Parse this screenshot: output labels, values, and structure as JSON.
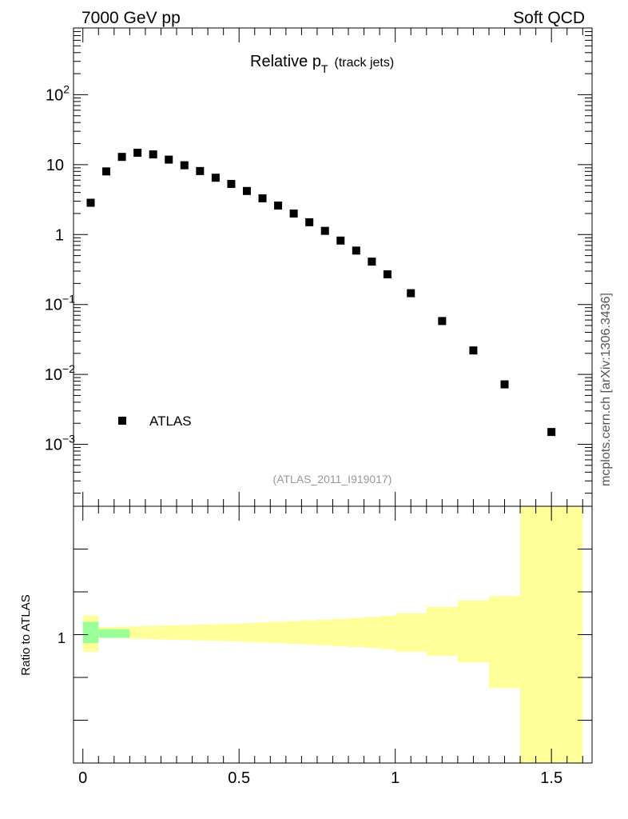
{
  "header": {
    "left": "7000 GeV pp",
    "right": "Soft QCD"
  },
  "plot_title": {
    "main": "Relative p",
    "sub": "T",
    "suffix": "(track jets)"
  },
  "analysis_id": "(ATLAS_2011_I919017)",
  "side_label": "mcplots.cern.ch [arXiv:1306.3436]",
  "legend": {
    "entry": "ATLAS",
    "placement": "lower-left"
  },
  "ratio_ylabel": "Ratio to ATLAS",
  "colors": {
    "markers": "#000000",
    "band_total": "#ffff99",
    "band_stat": "#99ff99"
  },
  "chart_data": [
    {
      "type": "scatter",
      "title": "Relative pT (track jets)",
      "yscale": "log",
      "xlim": [
        -0.03,
        1.63
      ],
      "ylim": [
        0.00013,
        900
      ],
      "ytick_labels": [
        {
          "value": 100,
          "base": "10",
          "exp": "2"
        },
        {
          "value": 10,
          "base": "10",
          "exp": ""
        },
        {
          "value": 1,
          "base": "1",
          "exp": ""
        },
        {
          "value": 0.1,
          "base": "10",
          "exp": "−1"
        },
        {
          "value": 0.01,
          "base": "10",
          "exp": "−2"
        },
        {
          "value": 0.001,
          "base": "10",
          "exp": "−3"
        }
      ],
      "series": [
        {
          "name": "ATLAS",
          "x": [
            0.025,
            0.075,
            0.125,
            0.175,
            0.225,
            0.275,
            0.325,
            0.375,
            0.425,
            0.475,
            0.525,
            0.575,
            0.625,
            0.675,
            0.725,
            0.775,
            0.825,
            0.875,
            0.925,
            0.975,
            1.05,
            1.15,
            1.25,
            1.35,
            1.5
          ],
          "y": [
            2.85,
            8.0,
            12.9,
            14.8,
            14.0,
            11.8,
            9.8,
            8.1,
            6.5,
            5.3,
            4.2,
            3.3,
            2.6,
            2.0,
            1.5,
            1.13,
            0.82,
            0.59,
            0.41,
            0.27,
            0.145,
            0.058,
            0.022,
            0.0072,
            0.0015
          ]
        }
      ]
    },
    {
      "type": "area",
      "ylabel": "Ratio to ATLAS",
      "xlim": [
        -0.03,
        1.63
      ],
      "ytick_labels": [
        {
          "value": 1,
          "label": "1"
        }
      ],
      "xtick_labels": [
        {
          "value": 0,
          "label": "0"
        },
        {
          "value": 0.5,
          "label": "0.5"
        },
        {
          "value": 1,
          "label": "1"
        },
        {
          "value": 1.5,
          "label": "1.5"
        }
      ],
      "bands": [
        {
          "kind": "total",
          "bins": [
            {
              "x0": 0.0,
              "x1": 0.05,
              "lo": 0.92,
              "hi": 1.09
            },
            {
              "x0": 0.05,
              "x1": 0.1,
              "lo": 0.985,
              "hi": 1.035
            },
            {
              "x0": 0.1,
              "x1": 0.15,
              "lo": 0.983,
              "hi": 1.037
            },
            {
              "x0": 0.15,
              "x1": 0.2,
              "lo": 0.981,
              "hi": 1.039
            },
            {
              "x0": 0.2,
              "x1": 0.25,
              "lo": 0.979,
              "hi": 1.041
            },
            {
              "x0": 0.25,
              "x1": 0.3,
              "lo": 0.977,
              "hi": 1.043
            },
            {
              "x0": 0.3,
              "x1": 0.35,
              "lo": 0.975,
              "hi": 1.045
            },
            {
              "x0": 0.35,
              "x1": 0.4,
              "lo": 0.973,
              "hi": 1.047
            },
            {
              "x0": 0.4,
              "x1": 0.45,
              "lo": 0.971,
              "hi": 1.049
            },
            {
              "x0": 0.45,
              "x1": 0.5,
              "lo": 0.969,
              "hi": 1.051
            },
            {
              "x0": 0.5,
              "x1": 0.55,
              "lo": 0.966,
              "hi": 1.054
            },
            {
              "x0": 0.55,
              "x1": 0.6,
              "lo": 0.963,
              "hi": 1.057
            },
            {
              "x0": 0.6,
              "x1": 0.65,
              "lo": 0.96,
              "hi": 1.06
            },
            {
              "x0": 0.65,
              "x1": 0.7,
              "lo": 0.957,
              "hi": 1.063
            },
            {
              "x0": 0.7,
              "x1": 0.75,
              "lo": 0.954,
              "hi": 1.066
            },
            {
              "x0": 0.75,
              "x1": 0.8,
              "lo": 0.95,
              "hi": 1.07
            },
            {
              "x0": 0.8,
              "x1": 0.85,
              "lo": 0.946,
              "hi": 1.074
            },
            {
              "x0": 0.85,
              "x1": 0.9,
              "lo": 0.942,
              "hi": 1.078
            },
            {
              "x0": 0.9,
              "x1": 0.95,
              "lo": 0.937,
              "hi": 1.083
            },
            {
              "x0": 0.95,
              "x1": 1.0,
              "lo": 0.932,
              "hi": 1.088
            },
            {
              "x0": 1.0,
              "x1": 1.1,
              "lo": 0.92,
              "hi": 1.1
            },
            {
              "x0": 1.1,
              "x1": 1.2,
              "lo": 0.9,
              "hi": 1.13
            },
            {
              "x0": 1.2,
              "x1": 1.3,
              "lo": 0.87,
              "hi": 1.16
            },
            {
              "x0": 1.3,
              "x1": 1.4,
              "lo": 0.75,
              "hi": 1.18
            },
            {
              "x0": 1.4,
              "x1": 1.6,
              "lo": 0.4,
              "hi": 1.6
            }
          ]
        },
        {
          "kind": "stat",
          "bins": [
            {
              "x0": 0.0,
              "x1": 0.05,
              "lo": 0.96,
              "hi": 1.06
            },
            {
              "x0": 0.05,
              "x1": 0.15,
              "lo": 0.985,
              "hi": 1.025
            }
          ]
        }
      ]
    }
  ]
}
